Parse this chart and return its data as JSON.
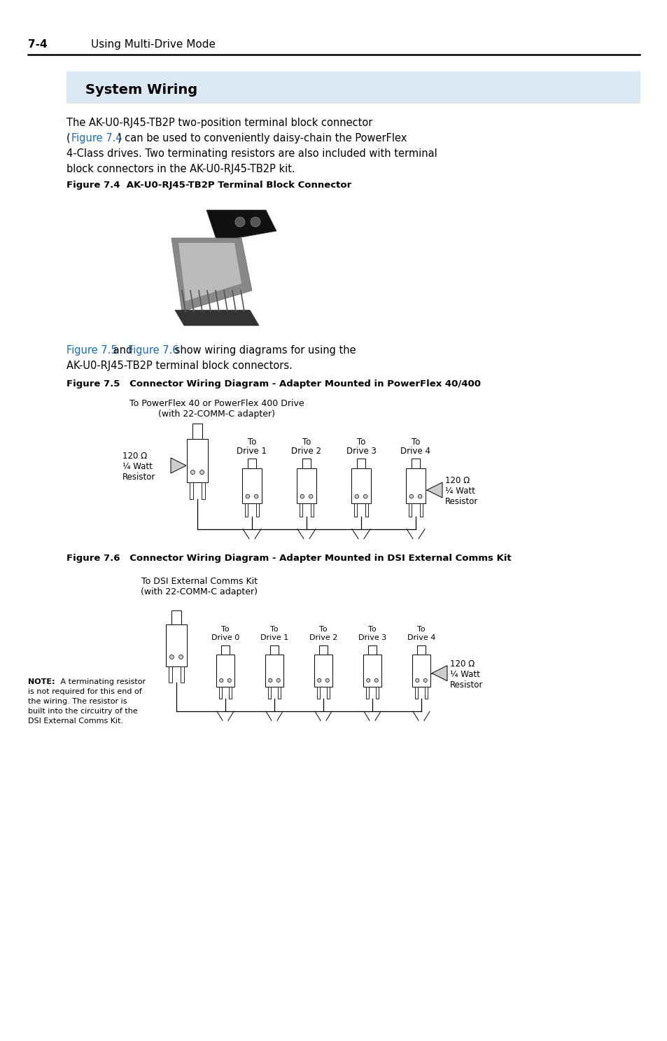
{
  "page_bg": "#ffffff",
  "header_num": "7-4",
  "header_sub": "Using Multi-Drive Mode",
  "section_title": "System Wiring",
  "section_bg": "#dce9f5",
  "body1_line1": "The AK-U0-RJ45-TB2P two-position terminal block connector",
  "body1_line2_pre": "(",
  "body1_line2_link": "Figure 7.4",
  "body1_line2_post": ") can be used to conveniently daisy-chain the PowerFlex",
  "body1_line3": "4-Class drives. Two terminating resistors are also included with terminal",
  "body1_line4": "block connectors in the AK-U0-RJ45-TB2P kit.",
  "fig74_label": "Figure 7.4  AK-U0-RJ45-TB2P Terminal Block Connector",
  "body2_link1": "Figure 7.5",
  "body2_mid": " and ",
  "body2_link2": "Figure 7.6",
  "body2_post": " show wiring diagrams for using the",
  "body2_line2": "AK-U0-RJ45-TB2P terminal block connectors.",
  "fig75_label": "Figure 7.5   Connector Wiring Diagram - Adapter Mounted in PowerFlex 40/400",
  "fig75_cap1": "To PowerFlex 40 or PowerFlex 400 Drive",
  "fig75_cap2": "(with 22-COMM-C adapter)",
  "fig75_left1": "120 Ω",
  "fig75_left2": "¼ Watt",
  "fig75_left3": "Resistor",
  "fig75_right1": "120 Ω",
  "fig75_right2": "¼ Watt",
  "fig75_right3": "Resistor",
  "fig75_drives": [
    "Drive 1",
    "Drive 2",
    "Drive 3",
    "Drive 4"
  ],
  "fig76_label": "Figure 7.6   Connector Wiring Diagram - Adapter Mounted in DSI External Comms Kit",
  "fig76_cap1": "To DSI External Comms Kit",
  "fig76_cap2": "(with 22-COMM-C adapter)",
  "fig76_right1": "120 Ω",
  "fig76_right2": "¼ Watt",
  "fig76_right3": "Resistor",
  "fig76_drives": [
    "Drive 0",
    "Drive 1",
    "Drive 2",
    "Drive 3",
    "Drive 4"
  ],
  "note_bold": "NOTE:",
  "note_rest1": " A terminating resistor",
  "note_line2": "is not required for this end of",
  "note_line3": "the wiring. The resistor is",
  "note_line4": "built into the circuitry of the",
  "note_line5": "DSI External Comms Kit.",
  "link_color": "#1a6bb5",
  "text_color": "#000000",
  "line_color": "#000000"
}
